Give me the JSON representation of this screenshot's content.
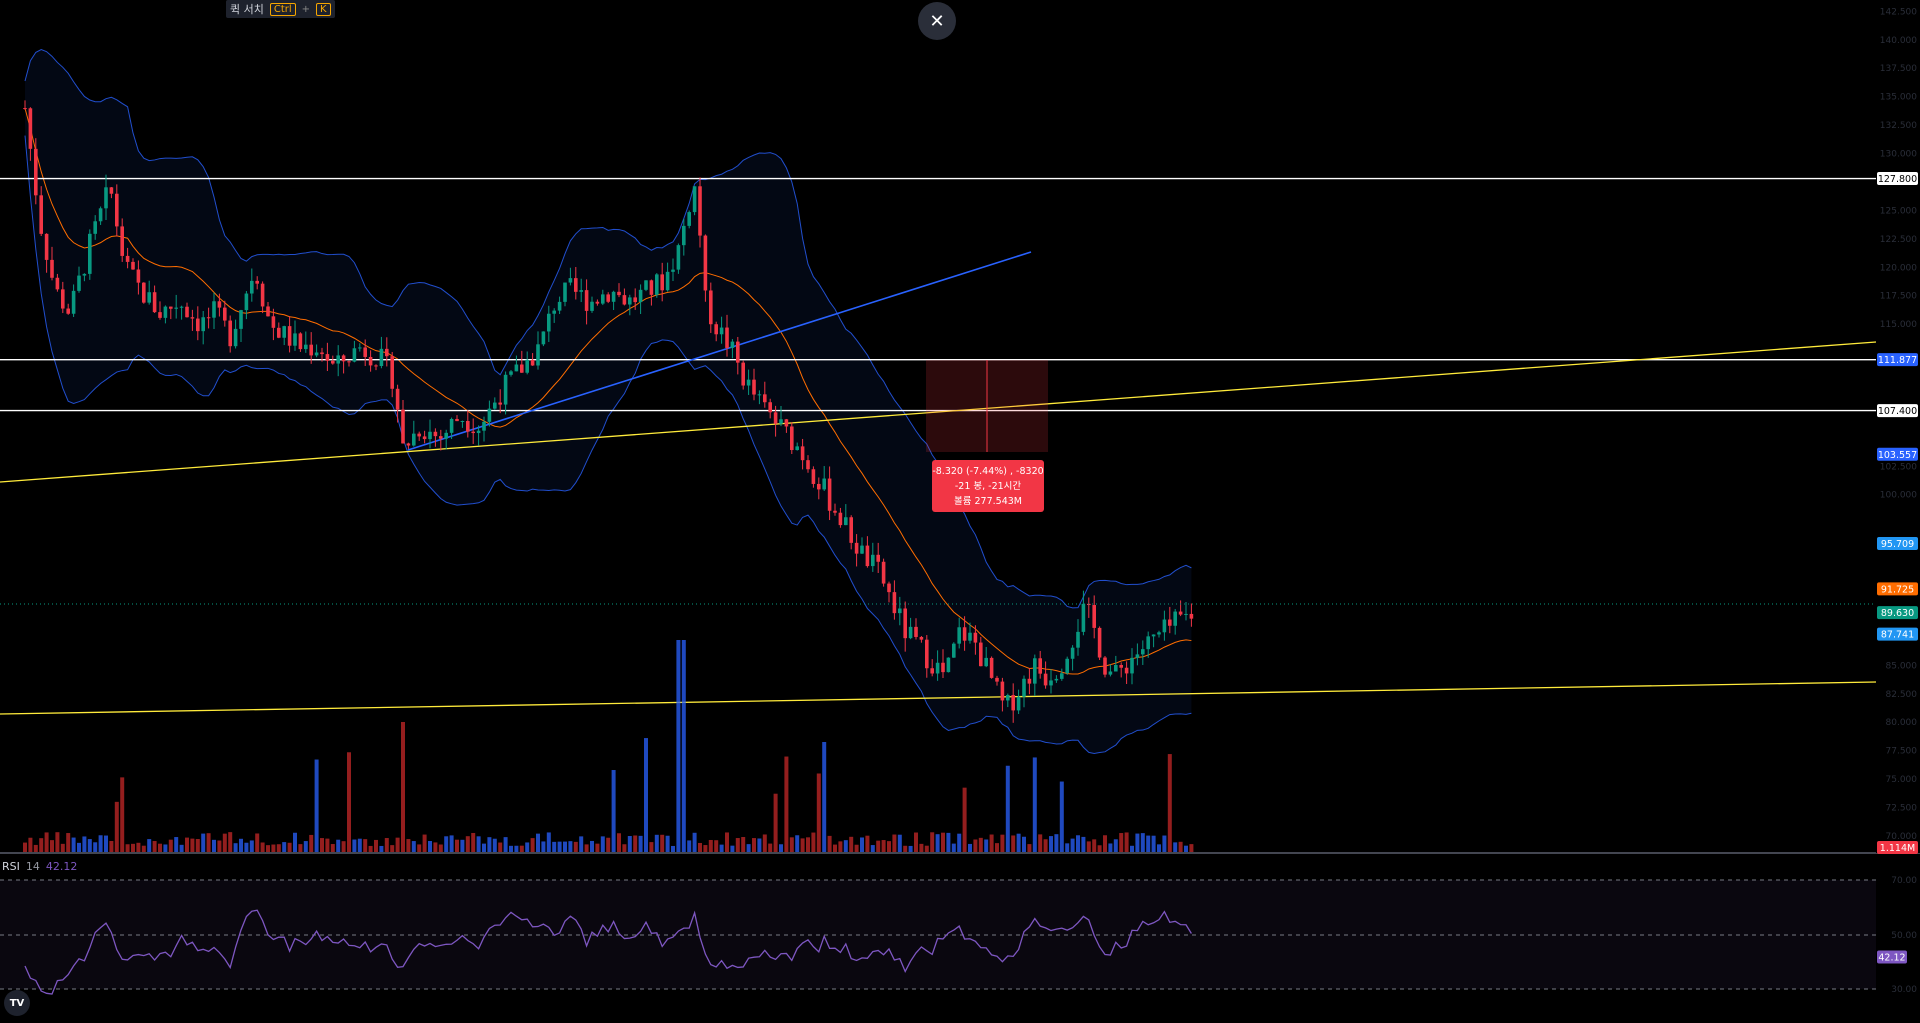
{
  "topbar": {
    "search_label": "퀵 서치",
    "kbd_ctrl": "Ctrl",
    "kbd_plus": "+",
    "kbd_k": "K"
  },
  "close_icon": "close-icon",
  "price_axis": {
    "ticks": [
      "142.500",
      "140.000",
      "137.500",
      "135.000",
      "132.500",
      "130.000",
      "125.000",
      "122.500",
      "120.000",
      "117.500",
      "115.000",
      "102.500",
      "100.000",
      "85.000",
      "82.500",
      "80.000",
      "77.500",
      "75.000",
      "72.500",
      "70.000"
    ],
    "ylim": [
      68.5,
      143.5
    ]
  },
  "markers": [
    {
      "value": "127.800",
      "price": 127.8,
      "bg": "#ffffff",
      "fg": "#000000",
      "line": true
    },
    {
      "value": "111.877",
      "price": 111.877,
      "bg": "#2962ff",
      "fg": "#ffffff",
      "line": true
    },
    {
      "value": "107.400",
      "price": 107.4,
      "bg": "#ffffff",
      "fg": "#000000",
      "line": true
    },
    {
      "value": "103.557",
      "price": 103.557,
      "bg": "#2962ff",
      "fg": "#ffffff",
      "line": false
    },
    {
      "value": "95.709",
      "price": 95.709,
      "bg": "#2196f3",
      "fg": "#ffffff",
      "line": false
    },
    {
      "value": "91.725",
      "price": 91.725,
      "bg": "#ff6d00",
      "fg": "#ffffff",
      "line": false
    },
    {
      "value": "89.630",
      "price": 89.63,
      "bg": "#089981",
      "fg": "#ffffff",
      "line": false
    },
    {
      "value": "87.741",
      "price": 87.741,
      "bg": "#2196f3",
      "fg": "#ffffff",
      "line": false
    }
  ],
  "volume_marker": {
    "value": "1.114M",
    "bg": "#f23645",
    "fg": "#ffffff"
  },
  "measure_tooltip": {
    "line1": "-8.320 (-7.44%) , -8320",
    "line2": "-21 봉, -21시간",
    "line3": "볼륨 277.543M",
    "bg": "#f23645"
  },
  "rsi": {
    "name": "RSI",
    "length": "14",
    "value": "42.12",
    "ticks": [
      "70.00",
      "50.00",
      "30.00"
    ],
    "line_color": "#7e57c2"
  },
  "logo": {
    "text": "TV"
  },
  "colors": {
    "up": "#089981",
    "down": "#f23645",
    "vol_up": "#2962ff",
    "vol_down": "#c62828",
    "bb": "#2962ff",
    "basis": "#ff6d00",
    "trend_yellow": "#ffeb3b",
    "trend_blue": "#2962ff"
  }
}
